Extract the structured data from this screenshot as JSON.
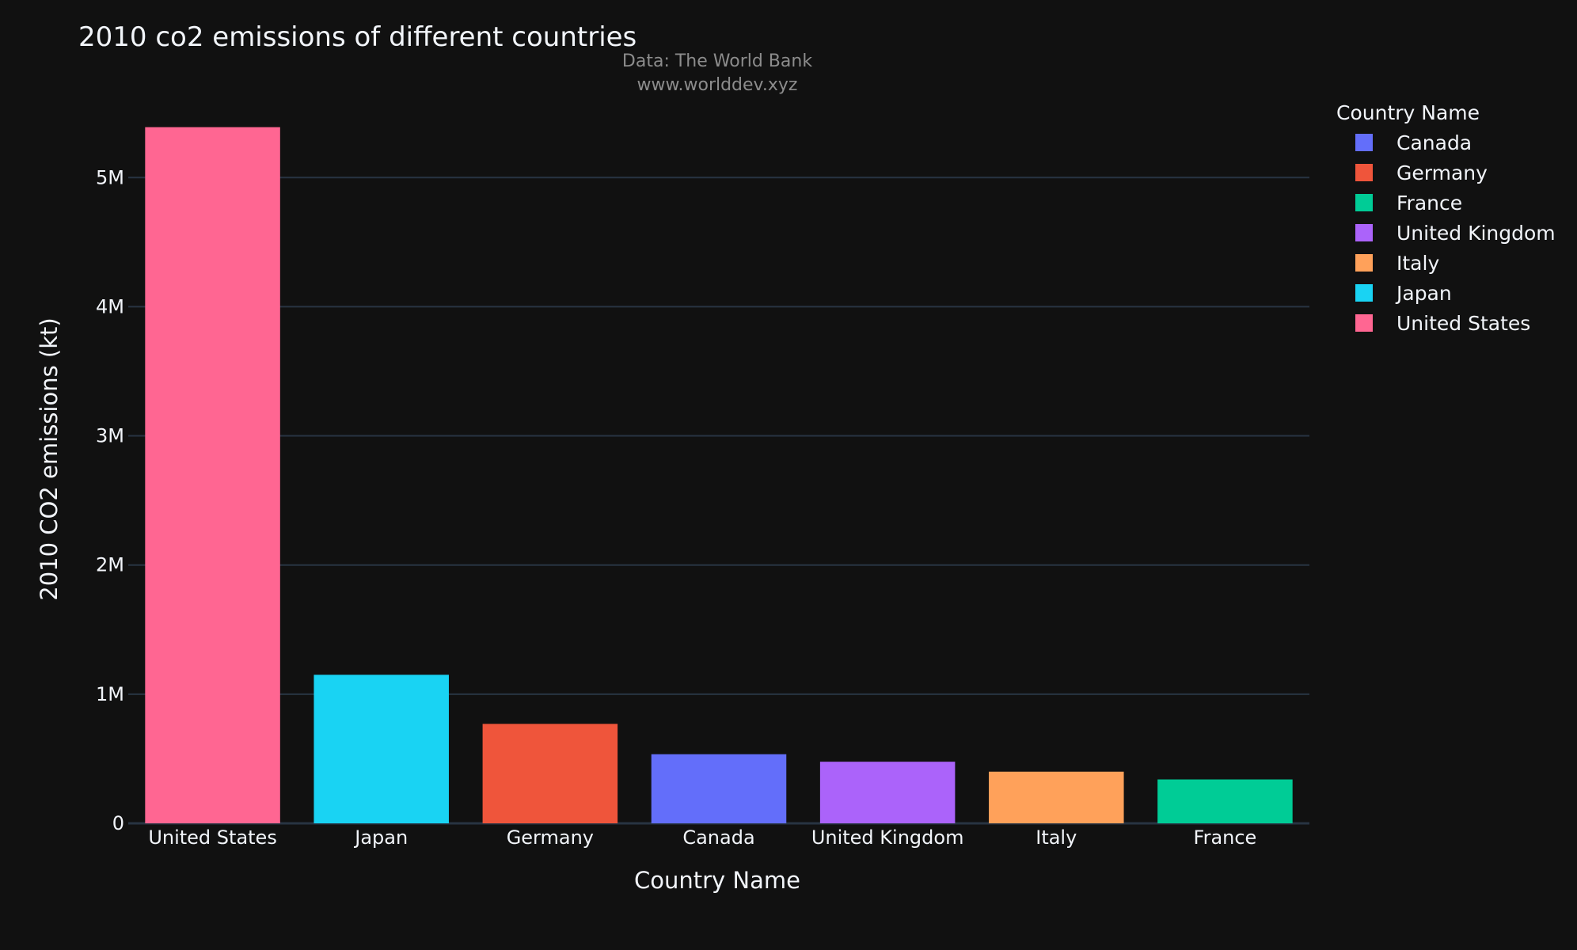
{
  "chart_data": {
    "type": "bar",
    "title": "2010 co2 emissions of different countries",
    "annotation_lines": [
      "Data: The World Bank",
      "www.worlddev.xyz"
    ],
    "xlabel": "Country Name",
    "ylabel": "2010 CO2 emissions (kt)",
    "ylim": [
      0,
      5400000
    ],
    "yticks": [
      {
        "value": 0,
        "label": "0"
      },
      {
        "value": 1000000,
        "label": "1M"
      },
      {
        "value": 2000000,
        "label": "2M"
      },
      {
        "value": 3000000,
        "label": "3M"
      },
      {
        "value": 4000000,
        "label": "4M"
      },
      {
        "value": 5000000,
        "label": "5M"
      }
    ],
    "grid": true,
    "categories": [
      "United States",
      "Japan",
      "Germany",
      "Canada",
      "United Kingdom",
      "Italy",
      "France"
    ],
    "values": [
      5390000,
      1150000,
      770000,
      535000,
      477000,
      400000,
      340000
    ],
    "bar_colors": [
      "#FF6692",
      "#19D3F3",
      "#EF553B",
      "#636EFA",
      "#AB63FA",
      "#FFA15A",
      "#00CC96"
    ],
    "legend": {
      "title": "Country Name",
      "placement": "top-right",
      "entries": [
        {
          "label": "Canada",
          "color": "#636EFA"
        },
        {
          "label": "Germany",
          "color": "#EF553B"
        },
        {
          "label": "France",
          "color": "#00CC96"
        },
        {
          "label": "United Kingdom",
          "color": "#AB63FA"
        },
        {
          "label": "Italy",
          "color": "#FFA15A"
        },
        {
          "label": "Japan",
          "color": "#19D3F3"
        },
        {
          "label": "United States",
          "color": "#FF6692"
        }
      ]
    }
  }
}
